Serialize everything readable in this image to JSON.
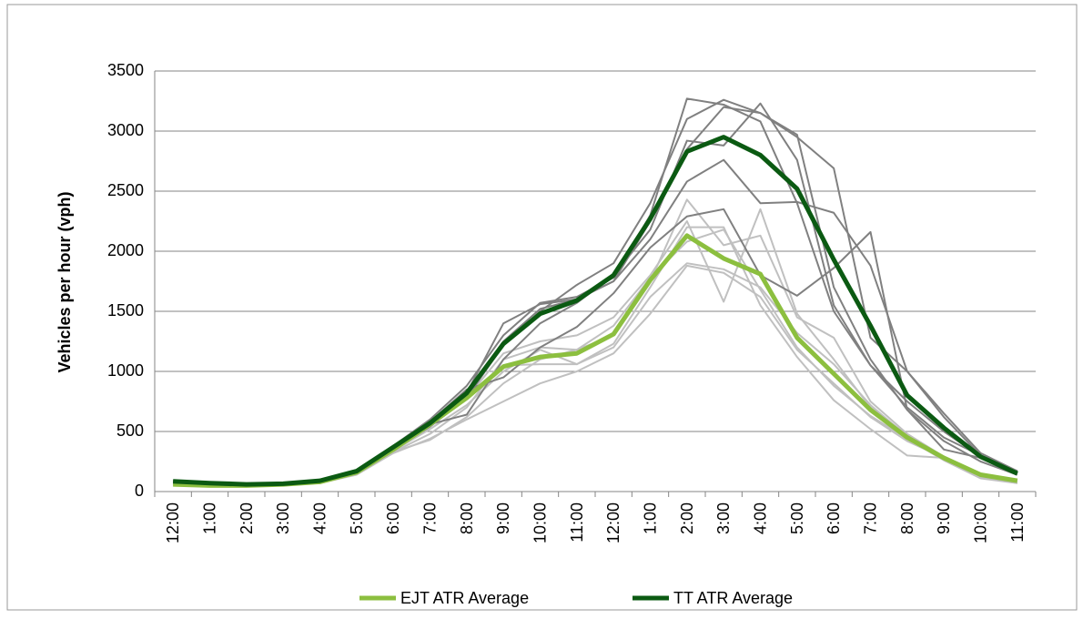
{
  "chart_data": {
    "type": "line",
    "y_label": "Vehicles per hour (vph)",
    "categories": [
      "12:00",
      "1:00",
      "2:00",
      "3:00",
      "4:00",
      "5:00",
      "6:00",
      "7:00",
      "8:00",
      "9:00",
      "10:00",
      "11:00",
      "12:00",
      "1:00",
      "2:00",
      "3:00",
      "4:00",
      "5:00",
      "6:00",
      "7:00",
      "8:00",
      "9:00",
      "10:00",
      "11:00"
    ],
    "ylim": [
      0,
      3500
    ],
    "yticks": [
      0,
      500,
      1000,
      1500,
      2000,
      2500,
      3000,
      3500
    ],
    "grid": true,
    "legend": "bottom",
    "series": [
      {
        "color": "#c0c0c0",
        "values": [
          60,
          50,
          45,
          55,
          75,
          150,
          330,
          480,
          700,
          1100,
          1200,
          1180,
          1300,
          1750,
          2430,
          2050,
          2130,
          1450,
          1280,
          750,
          480,
          290,
          140,
          90
        ]
      },
      {
        "color": "#c0c0c0",
        "values": [
          55,
          45,
          45,
          55,
          70,
          140,
          320,
          440,
          600,
          750,
          900,
          1000,
          1150,
          1480,
          1880,
          1820,
          1620,
          1180,
          900,
          620,
          420,
          280,
          130,
          80
        ]
      },
      {
        "color": "#c0c0c0",
        "values": [
          60,
          50,
          50,
          60,
          80,
          160,
          350,
          550,
          780,
          1150,
          1250,
          1300,
          1450,
          1800,
          2250,
          1580,
          2350,
          1480,
          1100,
          700,
          470,
          280,
          140,
          90
        ]
      },
      {
        "color": "#c0c0c0",
        "values": [
          65,
          50,
          50,
          60,
          80,
          155,
          340,
          520,
          720,
          1000,
          1180,
          1060,
          1230,
          1700,
          2200,
          2200,
          1550,
          1120,
          760,
          520,
          300,
          280,
          120,
          70
        ]
      },
      {
        "color": "#c0c0c0",
        "values": [
          60,
          50,
          50,
          60,
          80,
          160,
          340,
          560,
          800,
          1050,
          1060,
          1060,
          1200,
          1620,
          1900,
          1850,
          1700,
          1320,
          1060,
          720,
          460,
          270,
          150,
          100
        ]
      },
      {
        "color": "#c0c0c0",
        "values": [
          60,
          50,
          50,
          55,
          80,
          150,
          330,
          430,
          620,
          900,
          1100,
          1180,
          1380,
          1780,
          2080,
          2180,
          1680,
          1200,
          880,
          630,
          440,
          260,
          110,
          70
        ]
      },
      {
        "color": "#808080",
        "values": [
          80,
          65,
          55,
          60,
          90,
          180,
          380,
          600,
          880,
          1300,
          1570,
          1620,
          1780,
          2300,
          3270,
          3220,
          3080,
          2400,
          1500,
          1050,
          700,
          450,
          300,
          170
        ]
      },
      {
        "color": "#808080",
        "values": [
          90,
          70,
          60,
          65,
          95,
          170,
          350,
          540,
          780,
          1220,
          1500,
          1720,
          1900,
          2400,
          3100,
          3260,
          3150,
          2970,
          1700,
          1100,
          680,
          420,
          250,
          140
        ]
      },
      {
        "color": "#808080",
        "values": [
          85,
          70,
          60,
          65,
          85,
          160,
          360,
          560,
          640,
          1100,
          1400,
          1570,
          1800,
          2180,
          2920,
          2880,
          3230,
          2760,
          1550,
          1050,
          750,
          500,
          290,
          150
        ]
      },
      {
        "color": "#808080",
        "values": [
          80,
          65,
          55,
          60,
          80,
          160,
          370,
          580,
          820,
          1400,
          1560,
          1600,
          1750,
          2100,
          2580,
          2760,
          2400,
          2410,
          2320,
          1880,
          1000,
          650,
          320,
          170
        ]
      },
      {
        "color": "#808080",
        "values": [
          85,
          70,
          60,
          65,
          90,
          170,
          380,
          580,
          850,
          950,
          1200,
          1370,
          1650,
          2030,
          2290,
          2350,
          1800,
          1630,
          1860,
          2160,
          680,
          350,
          280,
          150
        ]
      },
      {
        "color": "#808080",
        "values": [
          80,
          65,
          55,
          60,
          85,
          165,
          370,
          560,
          820,
          1250,
          1520,
          1600,
          1750,
          2250,
          2850,
          3200,
          3150,
          2950,
          2690,
          1280,
          1000,
          620,
          300,
          160
        ]
      },
      {
        "name": "EJT ATR Average",
        "color": "#8cbf3f",
        "values": [
          60,
          50,
          50,
          60,
          80,
          160,
          350,
          560,
          780,
          1040,
          1120,
          1150,
          1310,
          1760,
          2130,
          1940,
          1810,
          1280,
          980,
          680,
          450,
          280,
          140,
          90
        ]
      },
      {
        "name": "TT ATR Average",
        "color": "#0b5a12",
        "values": [
          85,
          70,
          60,
          65,
          90,
          170,
          370,
          570,
          820,
          1230,
          1480,
          1590,
          1800,
          2270,
          2830,
          2950,
          2800,
          2520,
          1930,
          1380,
          800,
          530,
          290,
          150
        ]
      }
    ]
  }
}
